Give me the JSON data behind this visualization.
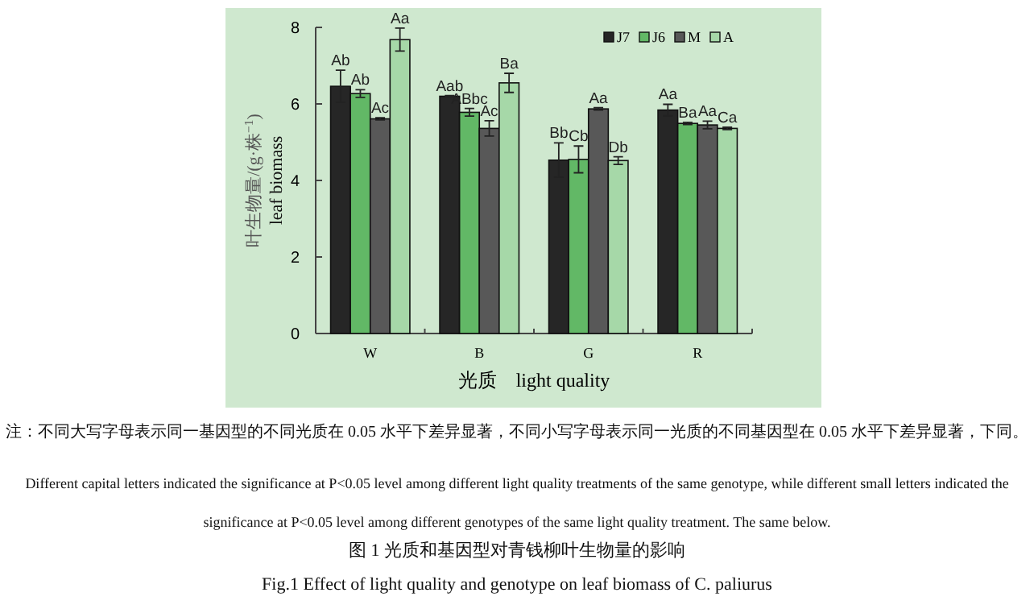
{
  "chart_data": {
    "type": "bar",
    "categories": [
      "W",
      "B",
      "G",
      "R"
    ],
    "series": [
      {
        "name": "J7",
        "color": "#262626",
        "values": [
          6.46,
          6.2,
          4.53,
          5.84
        ],
        "errors": [
          0.42,
          0.02,
          0.45,
          0.15
        ],
        "value_labels": [
          "Ab",
          "Aab",
          "Bb",
          "Aa"
        ]
      },
      {
        "name": "J6",
        "color": "#62b866",
        "values": [
          6.27,
          5.78,
          4.55,
          5.49
        ],
        "errors": [
          0.1,
          0.1,
          0.35,
          0.03
        ],
        "value_labels": [
          "Ab",
          "ABbc",
          "Cb",
          "Ba"
        ]
      },
      {
        "name": "M",
        "color": "#585858",
        "values": [
          5.61,
          5.36,
          5.87,
          5.45
        ],
        "errors": [
          0.03,
          0.2,
          0.03,
          0.1
        ],
        "value_labels": [
          "Ac",
          "Ac",
          "Aa",
          "Aa"
        ]
      },
      {
        "name": "A",
        "color": "#a6d8a8",
        "values": [
          7.68,
          6.55,
          4.52,
          5.36
        ],
        "errors": [
          0.3,
          0.25,
          0.1,
          0.03
        ],
        "value_labels": [
          "Aa",
          "Ba",
          "Db",
          "Ca"
        ]
      }
    ],
    "ylim": [
      0,
      8
    ],
    "yticks": [
      0,
      2,
      4,
      6,
      8
    ],
    "grid": false,
    "legend": "top right",
    "ylabel": "叶生物量/(g·株$^{−1}$)\nleaf biomass",
    "xlabel": "光质    light quality",
    "annotations": [
      "注：不同大写字母表示同一基因型的不同光质在 0.05 水平下差异显著，不同小写字母表示同一光质的不同基因型在 0.05 水平下差异显著，下同。",
      "Different capital letters indicated the significance at P<0.05 level among different light quality treatments of the same genotype, while different small letters indicated the significance at P<0.05 level among different genotypes of the same light quality treatment. The same below.",
      "图 1  光质和基因型对青钱柳叶生物量的影响",
      "Fig.1  Effect of light quality and genotype on leaf biomass of C. paliurus"
    ]
  }
}
